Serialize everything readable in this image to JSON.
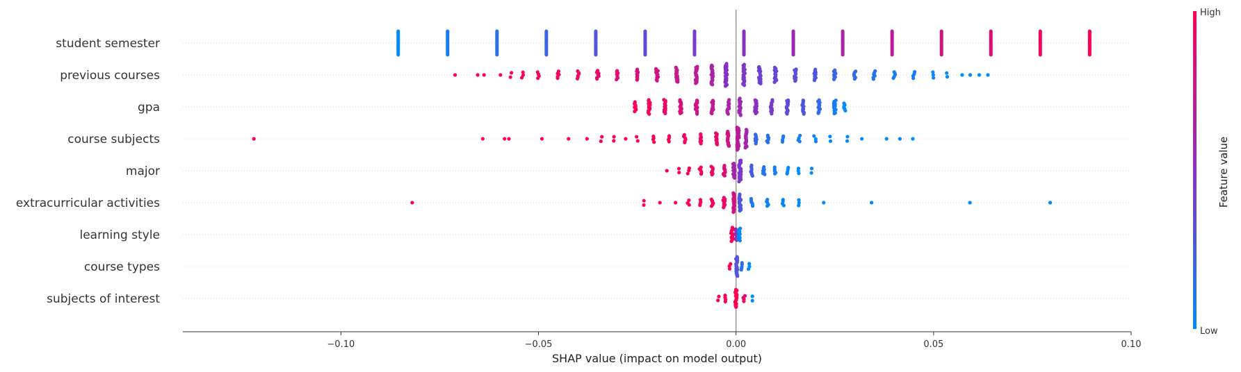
{
  "chart_data": {
    "type": "scatter",
    "subtype": "shap-beeswarm",
    "xlabel": "SHAP value (impact on model output)",
    "xlim": [
      -0.14,
      0.1
    ],
    "x_ticks": [
      -0.1,
      -0.05,
      0.0,
      0.05,
      0.1
    ],
    "x_tick_labels": [
      "−0.10",
      "−0.05",
      "0.00",
      "0.05",
      "0.10"
    ],
    "zero_line": true,
    "grid": false,
    "features": [
      {
        "name": "student semester",
        "points": [
          {
            "x": -0.0855,
            "v": 0.0,
            "n": 34
          },
          {
            "x": -0.073,
            "v": 0.07,
            "n": 34
          },
          {
            "x": -0.0605,
            "v": 0.14,
            "n": 34
          },
          {
            "x": -0.048,
            "v": 0.21,
            "n": 28
          },
          {
            "x": -0.0355,
            "v": 0.29,
            "n": 28
          },
          {
            "x": -0.023,
            "v": 0.36,
            "n": 34
          },
          {
            "x": -0.0105,
            "v": 0.43,
            "n": 22
          },
          {
            "x": 0.002,
            "v": 0.5,
            "n": 30
          },
          {
            "x": 0.0145,
            "v": 0.57,
            "n": 30
          },
          {
            "x": 0.027,
            "v": 0.64,
            "n": 30
          },
          {
            "x": 0.0395,
            "v": 0.71,
            "n": 30
          },
          {
            "x": 0.052,
            "v": 0.79,
            "n": 30
          },
          {
            "x": 0.0645,
            "v": 0.86,
            "n": 30
          },
          {
            "x": 0.077,
            "v": 0.93,
            "n": 30
          },
          {
            "x": 0.0895,
            "v": 1.0,
            "n": 30
          }
        ]
      },
      {
        "name": "previous courses",
        "points": [
          {
            "x": -0.071,
            "v": 1.0,
            "n": 1
          },
          {
            "x": -0.0655,
            "v": 1.0,
            "n": 1
          },
          {
            "x": -0.064,
            "v": 1.0,
            "n": 1
          },
          {
            "x": -0.0595,
            "v": 1.0,
            "n": 1
          },
          {
            "x": -0.057,
            "v": 1.0,
            "n": 2
          },
          {
            "x": -0.054,
            "v": 0.97,
            "n": 3
          },
          {
            "x": -0.05,
            "v": 0.96,
            "n": 4
          },
          {
            "x": -0.045,
            "v": 0.94,
            "n": 5
          },
          {
            "x": -0.04,
            "v": 0.92,
            "n": 6
          },
          {
            "x": -0.035,
            "v": 0.9,
            "n": 7
          },
          {
            "x": -0.03,
            "v": 0.87,
            "n": 8
          },
          {
            "x": -0.025,
            "v": 0.84,
            "n": 10
          },
          {
            "x": -0.02,
            "v": 0.8,
            "n": 12
          },
          {
            "x": -0.015,
            "v": 0.75,
            "n": 15
          },
          {
            "x": -0.01,
            "v": 0.7,
            "n": 18
          },
          {
            "x": -0.006,
            "v": 0.64,
            "n": 22
          },
          {
            "x": -0.0025,
            "v": 0.5,
            "n": 30
          },
          {
            "x": 0.002,
            "v": 0.45,
            "n": 24
          },
          {
            "x": 0.006,
            "v": 0.4,
            "n": 18
          },
          {
            "x": 0.01,
            "v": 0.38,
            "n": 15
          },
          {
            "x": 0.015,
            "v": 0.33,
            "n": 12
          },
          {
            "x": 0.02,
            "v": 0.28,
            "n": 10
          },
          {
            "x": 0.025,
            "v": 0.22,
            "n": 9
          },
          {
            "x": 0.03,
            "v": 0.18,
            "n": 7
          },
          {
            "x": 0.035,
            "v": 0.13,
            "n": 6
          },
          {
            "x": 0.04,
            "v": 0.1,
            "n": 5
          },
          {
            "x": 0.045,
            "v": 0.07,
            "n": 4
          },
          {
            "x": 0.05,
            "v": 0.04,
            "n": 3
          },
          {
            "x": 0.0535,
            "v": 0.02,
            "n": 2
          },
          {
            "x": 0.057,
            "v": 0.0,
            "n": 1
          },
          {
            "x": 0.0595,
            "v": 0.0,
            "n": 1
          },
          {
            "x": 0.0615,
            "v": 0.0,
            "n": 1
          },
          {
            "x": 0.0635,
            "v": 0.0,
            "n": 1
          }
        ]
      },
      {
        "name": "gpa",
        "points": [
          {
            "x": -0.0255,
            "v": 1.0,
            "n": 8
          },
          {
            "x": -0.022,
            "v": 0.95,
            "n": 14
          },
          {
            "x": -0.018,
            "v": 0.9,
            "n": 14
          },
          {
            "x": -0.014,
            "v": 0.84,
            "n": 14
          },
          {
            "x": -0.01,
            "v": 0.78,
            "n": 14
          },
          {
            "x": -0.006,
            "v": 0.72,
            "n": 14
          },
          {
            "x": -0.002,
            "v": 0.64,
            "n": 14
          },
          {
            "x": 0.001,
            "v": 0.58,
            "n": 18
          },
          {
            "x": 0.005,
            "v": 0.5,
            "n": 14
          },
          {
            "x": 0.009,
            "v": 0.44,
            "n": 14
          },
          {
            "x": 0.013,
            "v": 0.36,
            "n": 14
          },
          {
            "x": 0.017,
            "v": 0.28,
            "n": 14
          },
          {
            "x": 0.021,
            "v": 0.18,
            "n": 14
          },
          {
            "x": 0.025,
            "v": 0.08,
            "n": 14
          },
          {
            "x": 0.0275,
            "v": 0.0,
            "n": 6
          }
        ]
      },
      {
        "name": "course subjects",
        "points": [
          {
            "x": -0.122,
            "v": 1.0,
            "n": 1
          },
          {
            "x": -0.064,
            "v": 1.0,
            "n": 1
          },
          {
            "x": -0.0585,
            "v": 1.0,
            "n": 1
          },
          {
            "x": -0.0575,
            "v": 1.0,
            "n": 1
          },
          {
            "x": -0.049,
            "v": 1.0,
            "n": 1
          },
          {
            "x": -0.0425,
            "v": 1.0,
            "n": 1
          },
          {
            "x": -0.0375,
            "v": 1.0,
            "n": 1
          },
          {
            "x": -0.034,
            "v": 1.0,
            "n": 2
          },
          {
            "x": -0.031,
            "v": 1.0,
            "n": 2
          },
          {
            "x": -0.028,
            "v": 0.98,
            "n": 1
          },
          {
            "x": -0.025,
            "v": 0.98,
            "n": 2
          },
          {
            "x": -0.021,
            "v": 0.97,
            "n": 4
          },
          {
            "x": -0.017,
            "v": 0.96,
            "n": 4
          },
          {
            "x": -0.013,
            "v": 0.95,
            "n": 6
          },
          {
            "x": -0.009,
            "v": 0.93,
            "n": 8
          },
          {
            "x": -0.005,
            "v": 0.9,
            "n": 12
          },
          {
            "x": -0.002,
            "v": 0.8,
            "n": 16
          },
          {
            "x": 0.0005,
            "v": 0.7,
            "n": 30
          },
          {
            "x": 0.0025,
            "v": 0.6,
            "n": 20
          },
          {
            "x": 0.005,
            "v": 0.2,
            "n": 8
          },
          {
            "x": 0.008,
            "v": 0.15,
            "n": 6
          },
          {
            "x": 0.012,
            "v": 0.1,
            "n": 4
          },
          {
            "x": 0.016,
            "v": 0.06,
            "n": 4
          },
          {
            "x": 0.02,
            "v": 0.04,
            "n": 3
          },
          {
            "x": 0.024,
            "v": 0.02,
            "n": 2
          },
          {
            "x": 0.028,
            "v": 0.0,
            "n": 2
          },
          {
            "x": 0.032,
            "v": 0.0,
            "n": 1
          },
          {
            "x": 0.038,
            "v": 0.0,
            "n": 1
          },
          {
            "x": 0.0415,
            "v": 0.0,
            "n": 1
          },
          {
            "x": 0.0445,
            "v": 0.0,
            "n": 1
          }
        ]
      },
      {
        "name": "major",
        "points": [
          {
            "x": -0.0175,
            "v": 1.0,
            "n": 1
          },
          {
            "x": -0.0145,
            "v": 1.0,
            "n": 2
          },
          {
            "x": -0.012,
            "v": 0.98,
            "n": 3
          },
          {
            "x": -0.009,
            "v": 0.96,
            "n": 5
          },
          {
            "x": -0.006,
            "v": 0.93,
            "n": 7
          },
          {
            "x": -0.003,
            "v": 0.85,
            "n": 10
          },
          {
            "x": -0.0005,
            "v": 0.6,
            "n": 16
          },
          {
            "x": 0.001,
            "v": 0.45,
            "n": 24
          },
          {
            "x": 0.004,
            "v": 0.25,
            "n": 10
          },
          {
            "x": 0.007,
            "v": 0.12,
            "n": 7
          },
          {
            "x": 0.01,
            "v": 0.06,
            "n": 5
          },
          {
            "x": 0.013,
            "v": 0.03,
            "n": 4
          },
          {
            "x": 0.016,
            "v": 0.0,
            "n": 3
          },
          {
            "x": 0.019,
            "v": 0.0,
            "n": 2
          }
        ]
      },
      {
        "name": "extracurricular activities",
        "points": [
          {
            "x": -0.082,
            "v": 1.0,
            "n": 1
          },
          {
            "x": -0.0235,
            "v": 1.0,
            "n": 2
          },
          {
            "x": -0.0195,
            "v": 1.0,
            "n": 1
          },
          {
            "x": -0.0155,
            "v": 1.0,
            "n": 1
          },
          {
            "x": -0.012,
            "v": 0.98,
            "n": 3
          },
          {
            "x": -0.009,
            "v": 0.97,
            "n": 4
          },
          {
            "x": -0.006,
            "v": 0.95,
            "n": 6
          },
          {
            "x": -0.003,
            "v": 0.92,
            "n": 9
          },
          {
            "x": -0.0005,
            "v": 0.8,
            "n": 22
          },
          {
            "x": 0.001,
            "v": 0.3,
            "n": 18
          },
          {
            "x": 0.004,
            "v": 0.1,
            "n": 6
          },
          {
            "x": 0.008,
            "v": 0.05,
            "n": 5
          },
          {
            "x": 0.012,
            "v": 0.03,
            "n": 4
          },
          {
            "x": 0.016,
            "v": 0.0,
            "n": 3
          },
          {
            "x": 0.022,
            "v": 0.0,
            "n": 1
          },
          {
            "x": 0.0345,
            "v": 0.0,
            "n": 1
          },
          {
            "x": 0.059,
            "v": 0.0,
            "n": 1
          },
          {
            "x": 0.0795,
            "v": 0.0,
            "n": 1
          }
        ]
      },
      {
        "name": "learning style",
        "points": [
          {
            "x": -0.001,
            "v": 1.0,
            "n": 14
          },
          {
            "x": 0.0,
            "v": 0.6,
            "n": 10
          },
          {
            "x": 0.0008,
            "v": 0.0,
            "n": 12
          }
        ]
      },
      {
        "name": "course types",
        "points": [
          {
            "x": -0.0015,
            "v": 1.0,
            "n": 3
          },
          {
            "x": 0.0002,
            "v": 0.3,
            "n": 22
          },
          {
            "x": 0.0015,
            "v": 0.15,
            "n": 5
          },
          {
            "x": 0.0032,
            "v": 0.0,
            "n": 3
          }
        ]
      },
      {
        "name": "subjects of interest",
        "points": [
          {
            "x": -0.0045,
            "v": 1.0,
            "n": 2
          },
          {
            "x": -0.0025,
            "v": 1.0,
            "n": 4
          },
          {
            "x": 0.0,
            "v": 1.0,
            "n": 20
          },
          {
            "x": 0.002,
            "v": 0.9,
            "n": 4
          },
          {
            "x": 0.0042,
            "v": 0.0,
            "n": 2
          }
        ]
      }
    ],
    "colorbar": {
      "label": "Feature value",
      "high_label": "High",
      "low_label": "Low",
      "low_color": "#008bfb",
      "mid_color": "#8a2fc4",
      "high_color": "#ff0052"
    }
  }
}
